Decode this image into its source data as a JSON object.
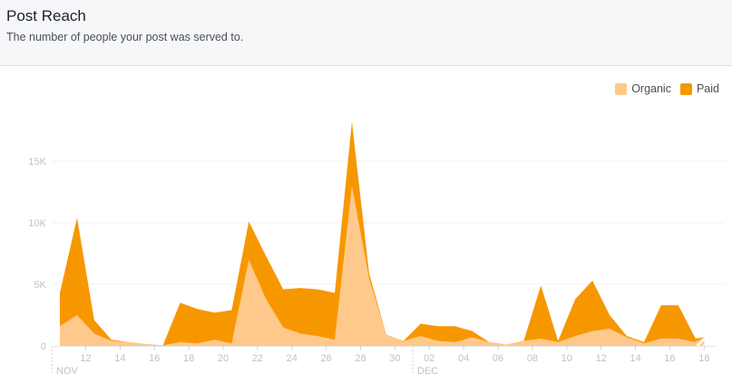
{
  "header": {
    "title": "Post Reach",
    "subtitle": "The number of people your post was served to."
  },
  "legend": [
    {
      "label": "Organic",
      "color": "#fec98b"
    },
    {
      "label": "Paid",
      "color": "#f79700"
    }
  ],
  "chart_data": {
    "type": "area",
    "stacked": true,
    "title": "Post Reach",
    "subtitle": "The number of people your post was served to.",
    "xlabel": "",
    "ylabel": "",
    "ylim": [
      0,
      18500
    ],
    "y_ticks": [
      "0",
      "5K",
      "10K",
      "15K"
    ],
    "x_tick_labels": [
      "12",
      "14",
      "16",
      "18",
      "20",
      "22",
      "24",
      "26",
      "28",
      "30",
      "02",
      "04",
      "06",
      "08",
      "10",
      "12",
      "14",
      "16",
      "18"
    ],
    "month_labels": [
      "NOV",
      "DEC"
    ],
    "grid": true,
    "legend_position": "top-right",
    "x": [
      "Nov 10",
      "Nov 11",
      "Nov 12",
      "Nov 13",
      "Nov 14",
      "Nov 15",
      "Nov 16",
      "Nov 17",
      "Nov 18",
      "Nov 19",
      "Nov 20",
      "Nov 21",
      "Nov 22",
      "Nov 23",
      "Nov 24",
      "Nov 25",
      "Nov 26",
      "Nov 27",
      "Nov 28",
      "Nov 29",
      "Nov 30",
      "Dec 01",
      "Dec 02",
      "Dec 03",
      "Dec 04",
      "Dec 05",
      "Dec 06",
      "Dec 07",
      "Dec 08",
      "Dec 09",
      "Dec 10",
      "Dec 11",
      "Dec 12",
      "Dec 13",
      "Dec 14",
      "Dec 15",
      "Dec 16",
      "Dec 17",
      "Dec 18"
    ],
    "series": [
      {
        "name": "Organic",
        "color": "#fec98b",
        "values": [
          1600,
          2500,
          1000,
          400,
          300,
          150,
          50,
          300,
          200,
          500,
          200,
          7000,
          3800,
          1500,
          1000,
          800,
          500,
          13000,
          5500,
          900,
          400,
          800,
          400,
          300,
          700,
          300,
          100,
          400,
          600,
          300,
          800,
          1200,
          1400,
          700,
          200,
          600,
          600,
          300,
          600
        ]
      },
      {
        "name": "Paid",
        "color": "#f79700",
        "values": [
          2700,
          7900,
          1100,
          100,
          0,
          0,
          0,
          3200,
          2800,
          2200,
          2700,
          3100,
          3500,
          3100,
          3700,
          3800,
          3800,
          5200,
          400,
          0,
          0,
          1000,
          1200,
          1300,
          500,
          0,
          0,
          0,
          4300,
          100,
          3000,
          4100,
          1100,
          100,
          100,
          2700,
          2700,
          300,
          100
        ]
      }
    ]
  }
}
